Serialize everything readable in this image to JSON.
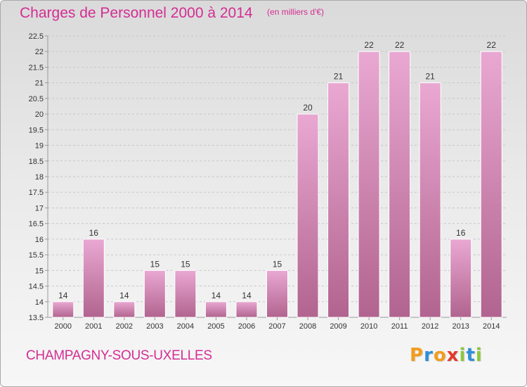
{
  "title": "Charges de Personnel 2000 à 2014",
  "unit": "(en milliers d'€)",
  "commune": "CHAMPAGNY-SOUS-UXELLES",
  "brand": {
    "letters": [
      "P",
      "r",
      "o",
      "x",
      "i",
      "t",
      "i"
    ],
    "colors": [
      "#f39c1e",
      "#2f8fd6",
      "#f39c1e",
      "#e23a2b",
      "#8cc63e",
      "#2f8fd6",
      "#8cc63e"
    ]
  },
  "colors": {
    "bar_light": "#e9a8d2",
    "bar_dark": "#b1648f",
    "grid": "#c7c7c7",
    "axis": "#999999",
    "text": "#333333",
    "accent": "#d42d93"
  },
  "chart_data": {
    "type": "bar",
    "title": "Charges de Personnel 2000 à 2014",
    "subtitle": "(en milliers d'€)",
    "categories": [
      "2000",
      "2001",
      "2002",
      "2003",
      "2004",
      "2005",
      "2006",
      "2007",
      "2008",
      "2009",
      "2010",
      "2011",
      "2012",
      "2013",
      "2014"
    ],
    "values": [
      14,
      16,
      14,
      15,
      15,
      14,
      14,
      15,
      20,
      21,
      22,
      22,
      21,
      16,
      22
    ],
    "ylim": [
      13.5,
      22.5
    ],
    "yticks": [
      "13.5",
      "14",
      "14.5",
      "15",
      "15.5",
      "16",
      "16.5",
      "17",
      "17.5",
      "18",
      "18.5",
      "19",
      "19.5",
      "20",
      "20.5",
      "21",
      "21.5",
      "22",
      "22.5"
    ],
    "grid": true,
    "data_labels": true,
    "legend": "none"
  }
}
